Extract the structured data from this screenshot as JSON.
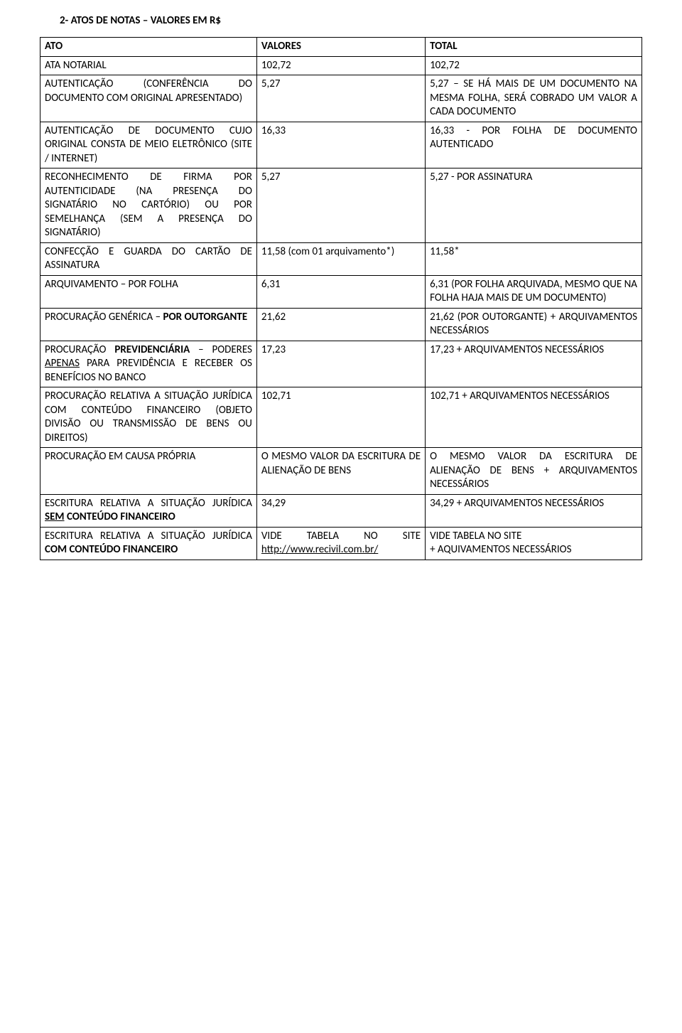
{
  "section_title": "2- ATOS DE NOTAS – VALORES EM R$",
  "headers": {
    "ato": "ATO",
    "valores": "VALORES",
    "total": "TOTAL"
  },
  "rows": [
    {
      "ato": "ATA NOTARIAL",
      "val": "102,72",
      "tot": "102,72"
    },
    {
      "ato_parts": [
        "AUTENTICAÇÃO (CONFERÊNCIA DO DOCUMENTO COM ORIGINAL APRESENTADO)"
      ],
      "val": "5,27",
      "tot": "5,27 – SE HÁ MAIS DE UM DOCUMENTO NA MESMA FOLHA, SERÁ COBRADO UM VALOR A CADA DOCUMENTO"
    },
    {
      "ato": "AUTENTICAÇÃO DE DOCUMENTO CUJO ORIGINAL CONSTA DE MEIO ELETRÔNICO (SITE / INTERNET)",
      "val": "16,33",
      "tot": "16,33 - POR FOLHA DE DOCUMENTO AUTENTICADO"
    },
    {
      "ato": "RECONHECIMENTO DE FIRMA POR AUTENTICIDADE (NA PRESENÇA DO SIGNATÁRIO NO CARTÓRIO) OU POR SEMELHANÇA (SEM A PRESENÇA DO SIGNATÁRIO)",
      "val": "5,27",
      "tot": "5,27 - POR ASSINATURA"
    },
    {
      "ato": "CONFECÇÃO E GUARDA DO CARTÃO DE ASSINATURA",
      "val": "11,58 (com 01 arquivamento*)",
      "tot": "11,58*"
    },
    {
      "ato": "ARQUIVAMENTO – POR FOLHA",
      "val": "6,31",
      "tot": "6,31 (POR FOLHA ARQUIVADA, MESMO QUE NA FOLHA HAJA MAIS DE UM DOCUMENTO)"
    },
    {
      "ato_html": "PROCURAÇÃO GENÉRICA – <span class='b'>POR OUTORGANTE</span>",
      "val": "21,62",
      "tot": "21,62 (POR OUTORGANTE) + ARQUIVAMENTOS NECESSÁRIOS"
    },
    {
      "ato_html": "PROCURAÇÃO <span class='b'>PREVIDENCIÁRIA</span> – PODERES <span class='u'>APENAS</span> PARA PREVIDÊNCIA E RECEBER OS BENEFÍCIOS NO BANCO",
      "val": "17,23",
      "tot": "17,23 + ARQUIVAMENTOS NECESSÁRIOS"
    },
    {
      "ato": "PROCURAÇÃO RELATIVA A SITUAÇÃO JURÍDICA COM CONTEÚDO FINANCEIRO (OBJETO DIVISÃO OU TRANSMISSÃO DE BENS OU DIREITOS)",
      "val": "102,71",
      "tot": "102,71 + ARQUIVAMENTOS NECESSÁRIOS"
    },
    {
      "ato": "PROCURAÇÃO EM CAUSA PRÓPRIA",
      "val": "O MESMO VALOR DA ESCRITURA DE ALIENAÇÃO DE BENS",
      "tot": "O MESMO VALOR DA ESCRITURA DE ALIENAÇÃO DE BENS + ARQUIVAMENTOS NECESSÁRIOS"
    },
    {
      "ato_html": "ESCRITURA RELATIVA A SITUAÇÃO JURÍDICA <span class='b u'>SEM</span> <span class='b'>CONTEÚDO FINANCEIRO</span>",
      "val": "34,29",
      "tot": "34,29 + ARQUIVAMENTOS NECESSÁRIOS"
    },
    {
      "ato_html": "ESCRITURA RELATIVA A SITUAÇÃO JURÍDICA <span class='b'>COM CONTEÚDO FINANCEIRO</span>",
      "val_html": "VIDE TABELA NO SITE <span class='u'>http://www.recivil.com.br/</span>",
      "tot_lines": [
        "VIDE TABELA NO SITE",
        "+ AQUIVAMENTOS NECESSÁRIOS"
      ]
    }
  ]
}
